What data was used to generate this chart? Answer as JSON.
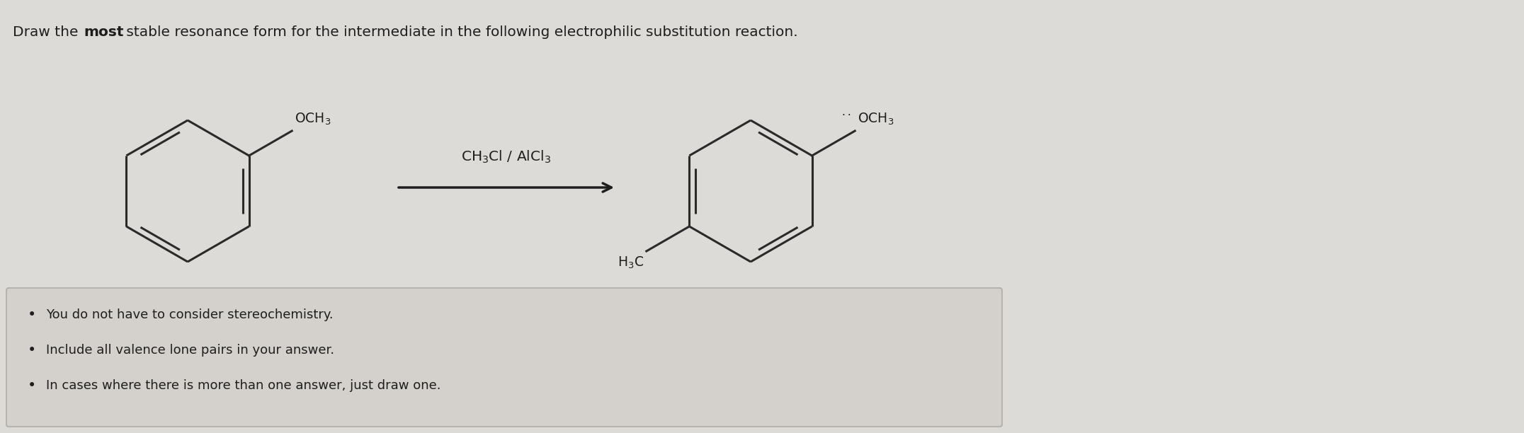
{
  "background_color": "#dddbd7",
  "box_bg": "#d4d1cc",
  "line_color": "#2a2a2a",
  "text_color": "#1e1e1e",
  "arrow_color": "#1e1e1e",
  "title_fontsize": 14.5,
  "chem_fontsize": 13.5,
  "bullet_fontsize": 13.0,
  "bullet_points": [
    "You do not have to consider stereochemistry.",
    "Include all valence lone pairs in your answer.",
    "In cases where there is more than one answer, just draw one."
  ]
}
